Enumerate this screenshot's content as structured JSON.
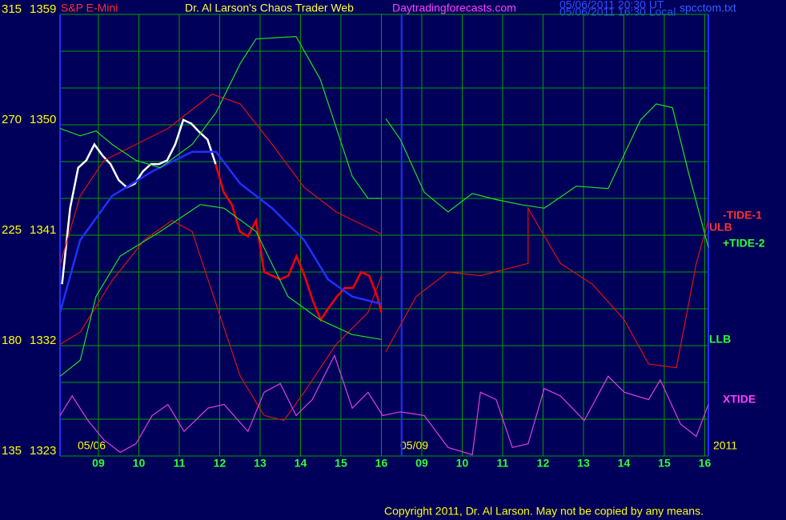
{
  "chart_data": {
    "type": "line",
    "instrument": "S&P E-Mini",
    "title": "Dr. Al Larson's Chaos Trader Web",
    "site": "Daytradingforecasts.com",
    "timestamps": [
      "05/06/2011 20:30 UT",
      "05/06/2011 16:30 Local"
    ],
    "file": "spcctom.txt",
    "day_labels": [
      "05/06",
      "05/09"
    ],
    "year": "2011",
    "copyright": "Copyright 2011, Dr. Al Larson. May not be copied by any means.",
    "grid": true,
    "xlim": [
      8.05,
      24.09
    ],
    "xticks": [
      {
        "value": 9,
        "label": "09"
      },
      10,
      11,
      12,
      13,
      14,
      15,
      16,
      {
        "value": 17,
        "label": "09"
      },
      {
        "value": 18,
        "label": "10"
      },
      {
        "value": 19,
        "label": "11"
      },
      {
        "value": 20,
        "label": "12"
      },
      {
        "value": 21,
        "label": "13"
      },
      {
        "value": 22,
        "label": "14"
      },
      {
        "value": 23,
        "label": "15"
      },
      {
        "value": 24,
        "label": "16"
      }
    ],
    "ylim": [
      1323,
      1359
    ],
    "yticks": [
      1323,
      1332,
      1341,
      1350,
      1359
    ],
    "minor_yticks": [
      1326,
      1329,
      1335,
      1338,
      1344,
      1347,
      1353,
      1356
    ],
    "y2lim": [
      135,
      315
    ],
    "y2ticks": [
      135,
      180,
      225,
      270,
      315
    ],
    "series": [
      {
        "color": "#ffffff",
        "x": [
          8.1,
          8.3,
          8.5,
          8.7,
          8.9,
          9.1,
          9.3,
          9.5,
          9.7,
          9.9,
          10.1,
          10.3,
          10.5,
          10.7,
          10.9,
          11.1,
          11.3,
          11.5,
          11.7,
          11.9
        ],
        "values": [
          1337.0,
          1343.2,
          1346.5,
          1347.1,
          1348.4,
          1347.5,
          1346.8,
          1345.5,
          1344.9,
          1345.2,
          1346.2,
          1346.8,
          1346.8,
          1347.1,
          1348.4,
          1350.4,
          1350.1,
          1349.4,
          1348.8,
          1346.8
        ]
      },
      {
        "color": "#ff0000",
        "x": [
          11.9,
          12.1,
          12.3,
          12.5,
          12.7,
          12.9,
          13.1,
          13.3,
          13.5,
          13.7,
          13.9,
          14.1,
          14.3,
          14.5,
          14.7,
          14.9,
          15.1,
          15.3,
          15.5,
          15.7,
          15.9,
          16.0
        ],
        "values": [
          1346.8,
          1344.5,
          1343.5,
          1341.3,
          1340.9,
          1342.2,
          1338.0,
          1337.7,
          1337.4,
          1337.7,
          1339.3,
          1337.7,
          1335.7,
          1334.1,
          1335.1,
          1336.0,
          1336.7,
          1336.7,
          1338.0,
          1337.7,
          1336.0,
          1334.7
        ]
      },
      {
        "name": "ULB",
        "color": "#e01010",
        "x": [
          8.05,
          8.55,
          9.14,
          9.93,
          10.72,
          11.81,
          12.51,
          13.3,
          14.09,
          14.88,
          16.0
        ],
        "values": [
          1338.6,
          1344.2,
          1347.1,
          1348.4,
          1349.7,
          1352.5,
          1351.7,
          1348.4,
          1344.9,
          1342.9,
          1341.1
        ]
      },
      {
        "name": "-TIDE-1",
        "color": "#e01010",
        "x": [
          8.05,
          8.55,
          9.34,
          10.13,
          10.82,
          11.32,
          11.91,
          12.51,
          13.1,
          13.59,
          14.09,
          14.88,
          15.67,
          16.0,
          null,
          16.11,
          16.86,
          17.65,
          18.45,
          19.63,
          19.63,
          20.43,
          21.22,
          22.01,
          22.61,
          23.3,
          23.79,
          24.09
        ],
        "values": [
          1332.1,
          1333.1,
          1337.3,
          1340.6,
          1342.2,
          1341.3,
          1335.4,
          1329.5,
          1326.3,
          1325.9,
          1328.2,
          1332.1,
          1334.7,
          1337.7,
          null,
          1331.5,
          1336.0,
          1338.0,
          1337.7,
          1338.7,
          1343.2,
          1338.7,
          1337.0,
          1334.1,
          1330.5,
          1330.2,
          1338.7,
          1342.2
        ]
      },
      {
        "color": "#2030ff",
        "x": [
          8.05,
          8.55,
          9.34,
          10.33,
          11.32,
          11.91,
          12.51,
          13.3,
          14.09,
          14.68,
          15.28,
          16.0
        ],
        "values": [
          1334.7,
          1340.6,
          1344.2,
          1346.2,
          1347.8,
          1347.8,
          1345.2,
          1343.2,
          1340.6,
          1337.4,
          1336.0,
          1335.4
        ]
      },
      {
        "name": "+TIDE-2",
        "color": "#20e020",
        "x": [
          8.05,
          8.55,
          8.94,
          9.34,
          9.93,
          10.53,
          11.32,
          11.91,
          12.51,
          12.9,
          13.89,
          14.49,
          15.28,
          15.67,
          16.0,
          null,
          16.11,
          16.47,
          17.06,
          17.65,
          18.25,
          18.84,
          19.44,
          20.03,
          20.82,
          21.61,
          22.41,
          22.8,
          23.2,
          23.59,
          24.09
        ],
        "values": [
          1349.7,
          1349.1,
          1349.5,
          1348.4,
          1347.1,
          1346.5,
          1348.4,
          1351.0,
          1355.0,
          1357.0,
          1357.2,
          1353.7,
          1345.8,
          1344.0,
          1344.0,
          null,
          1350.5,
          1348.8,
          1344.5,
          1342.9,
          1344.4,
          1343.9,
          1343.5,
          1343.2,
          1345.0,
          1344.8,
          1350.4,
          1351.7,
          1351.4,
          1346.2,
          1340.0
        ]
      },
      {
        "name": "LLB",
        "color": "#20e020",
        "x": [
          8.05,
          8.55,
          8.94,
          9.54,
          10.53,
          11.52,
          12.11,
          12.9,
          13.69,
          14.49,
          15.28,
          16.0
        ],
        "values": [
          1329.5,
          1330.8,
          1336.0,
          1339.3,
          1341.3,
          1343.5,
          1343.2,
          1341.3,
          1336.0,
          1334.1,
          1332.9,
          1332.5
        ]
      },
      {
        "name": "XTIDE",
        "color": "#e040e0",
        "x": [
          8.05,
          8.35,
          8.74,
          9.14,
          9.54,
          9.93,
          10.33,
          10.72,
          11.12,
          11.71,
          12.11,
          12.7,
          13.1,
          13.5,
          13.89,
          14.29,
          14.84,
          15.28,
          15.67,
          16.03,
          16.47,
          17.06,
          17.65,
          18.25,
          18.45,
          18.84,
          19.24,
          19.63,
          20.03,
          20.43,
          21.02,
          21.61,
          22.01,
          22.61,
          22.9,
          23.4,
          23.79,
          24.09
        ],
        "values": [
          1326.3,
          1327.9,
          1325.9,
          1324.3,
          1323.3,
          1324.0,
          1326.3,
          1327.2,
          1325.0,
          1326.9,
          1327.2,
          1325.0,
          1328.2,
          1328.9,
          1326.3,
          1327.6,
          1331.2,
          1326.9,
          1328.2,
          1326.3,
          1326.6,
          1326.3,
          1323.7,
          1323.1,
          1328.2,
          1327.6,
          1323.7,
          1324.0,
          1328.5,
          1327.9,
          1325.9,
          1329.5,
          1328.2,
          1327.6,
          1329.2,
          1325.6,
          1324.6,
          1327.2
        ]
      }
    ]
  }
}
